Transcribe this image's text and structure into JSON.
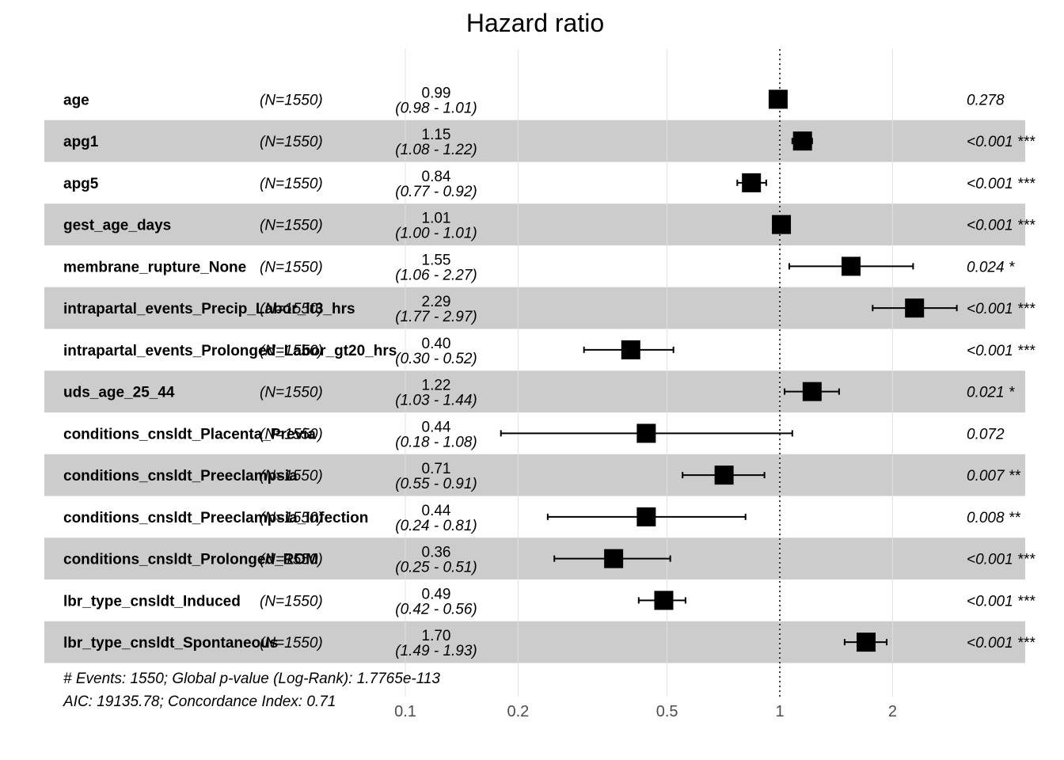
{
  "chart_data": {
    "type": "forest",
    "title": "Hazard ratio",
    "x_scale": "log",
    "xlim": [
      0.1,
      3.5
    ],
    "x_ticks": [
      {
        "value": 0.1,
        "label": "0.1"
      },
      {
        "value": 0.2,
        "label": "0.2"
      },
      {
        "value": 0.5,
        "label": "0.5"
      },
      {
        "value": 1,
        "label": "1"
      },
      {
        "value": 2,
        "label": "2"
      }
    ],
    "reference_line": 1,
    "rows": [
      {
        "variable": "age",
        "n_label": "(N=1550)",
        "hr": 0.99,
        "lower": 0.98,
        "upper": 1.01,
        "hr_label": "0.99",
        "ci_label": "(0.98 - 1.01)",
        "p_label": "0.278"
      },
      {
        "variable": "apg1",
        "n_label": "(N=1550)",
        "hr": 1.15,
        "lower": 1.08,
        "upper": 1.22,
        "hr_label": "1.15",
        "ci_label": "(1.08 - 1.22)",
        "p_label": "<0.001 ***"
      },
      {
        "variable": "apg5",
        "n_label": "(N=1550)",
        "hr": 0.84,
        "lower": 0.77,
        "upper": 0.92,
        "hr_label": "0.84",
        "ci_label": "(0.77 - 0.92)",
        "p_label": "<0.001 ***"
      },
      {
        "variable": "gest_age_days",
        "n_label": "(N=1550)",
        "hr": 1.01,
        "lower": 1.0,
        "upper": 1.01,
        "hr_label": "1.01",
        "ci_label": "(1.00 - 1.01)",
        "p_label": "<0.001 ***"
      },
      {
        "variable": "membrane_rupture_None",
        "n_label": "(N=1550)",
        "hr": 1.55,
        "lower": 1.06,
        "upper": 2.27,
        "hr_label": "1.55",
        "ci_label": "(1.06 - 2.27)",
        "p_label": "0.024 *"
      },
      {
        "variable": "intrapartal_events_Precip_Labor_lt3_hrs",
        "n_label": "(N=1550)",
        "hr": 2.29,
        "lower": 1.77,
        "upper": 2.97,
        "hr_label": "2.29",
        "ci_label": "(1.77 - 2.97)",
        "p_label": "<0.001 ***"
      },
      {
        "variable": "intrapartal_events_Prolonged_Labor_gt20_hrs",
        "n_label": "(N=1550)",
        "hr": 0.4,
        "lower": 0.3,
        "upper": 0.52,
        "hr_label": "0.40",
        "ci_label": "(0.30 - 0.52)",
        "p_label": "<0.001 ***"
      },
      {
        "variable": "uds_age_25_44",
        "n_label": "(N=1550)",
        "hr": 1.22,
        "lower": 1.03,
        "upper": 1.44,
        "hr_label": "1.22",
        "ci_label": "(1.03 - 1.44)",
        "p_label": "0.021 *"
      },
      {
        "variable": "conditions_cnsldt_Placenta_Previa",
        "n_label": "(N=1550)",
        "hr": 0.44,
        "lower": 0.18,
        "upper": 1.08,
        "hr_label": "0.44",
        "ci_label": "(0.18 - 1.08)",
        "p_label": "0.072"
      },
      {
        "variable": "conditions_cnsldt_Preeclampsia",
        "n_label": "(N=1550)",
        "hr": 0.71,
        "lower": 0.55,
        "upper": 0.91,
        "hr_label": "0.71",
        "ci_label": "(0.55 - 0.91)",
        "p_label": "0.007 **"
      },
      {
        "variable": "conditions_cnsldt_Preeclampsia_Infection",
        "n_label": "(N=1550)",
        "hr": 0.44,
        "lower": 0.24,
        "upper": 0.81,
        "hr_label": "0.44",
        "ci_label": "(0.24 - 0.81)",
        "p_label": "0.008 **"
      },
      {
        "variable": "conditions_cnsldt_Prolonged_ROM",
        "n_label": "(N=1550)",
        "hr": 0.36,
        "lower": 0.25,
        "upper": 0.51,
        "hr_label": "0.36",
        "ci_label": "(0.25 - 0.51)",
        "p_label": "<0.001 ***"
      },
      {
        "variable": "lbr_type_cnsldt_Induced",
        "n_label": "(N=1550)",
        "hr": 0.49,
        "lower": 0.42,
        "upper": 0.56,
        "hr_label": "0.49",
        "ci_label": "(0.42 - 0.56)",
        "p_label": "<0.001 ***"
      },
      {
        "variable": "lbr_type_cnsldt_Spontaneous",
        "n_label": "(N=1550)",
        "hr": 1.7,
        "lower": 1.49,
        "upper": 1.93,
        "hr_label": "1.70",
        "ci_label": "(1.49 - 1.93)",
        "p_label": "<0.001 ***"
      }
    ],
    "footnotes": [
      "# Events: 1550; Global p-value (Log-Rank): 1.7765e-113",
      "AIC: 19135.78; Concordance Index: 0.71"
    ],
    "colors": {
      "stripe": "#cccccc",
      "gridline": "#e0e0e0",
      "marker": "#000000",
      "tick_text": "#4d4d4d"
    }
  }
}
